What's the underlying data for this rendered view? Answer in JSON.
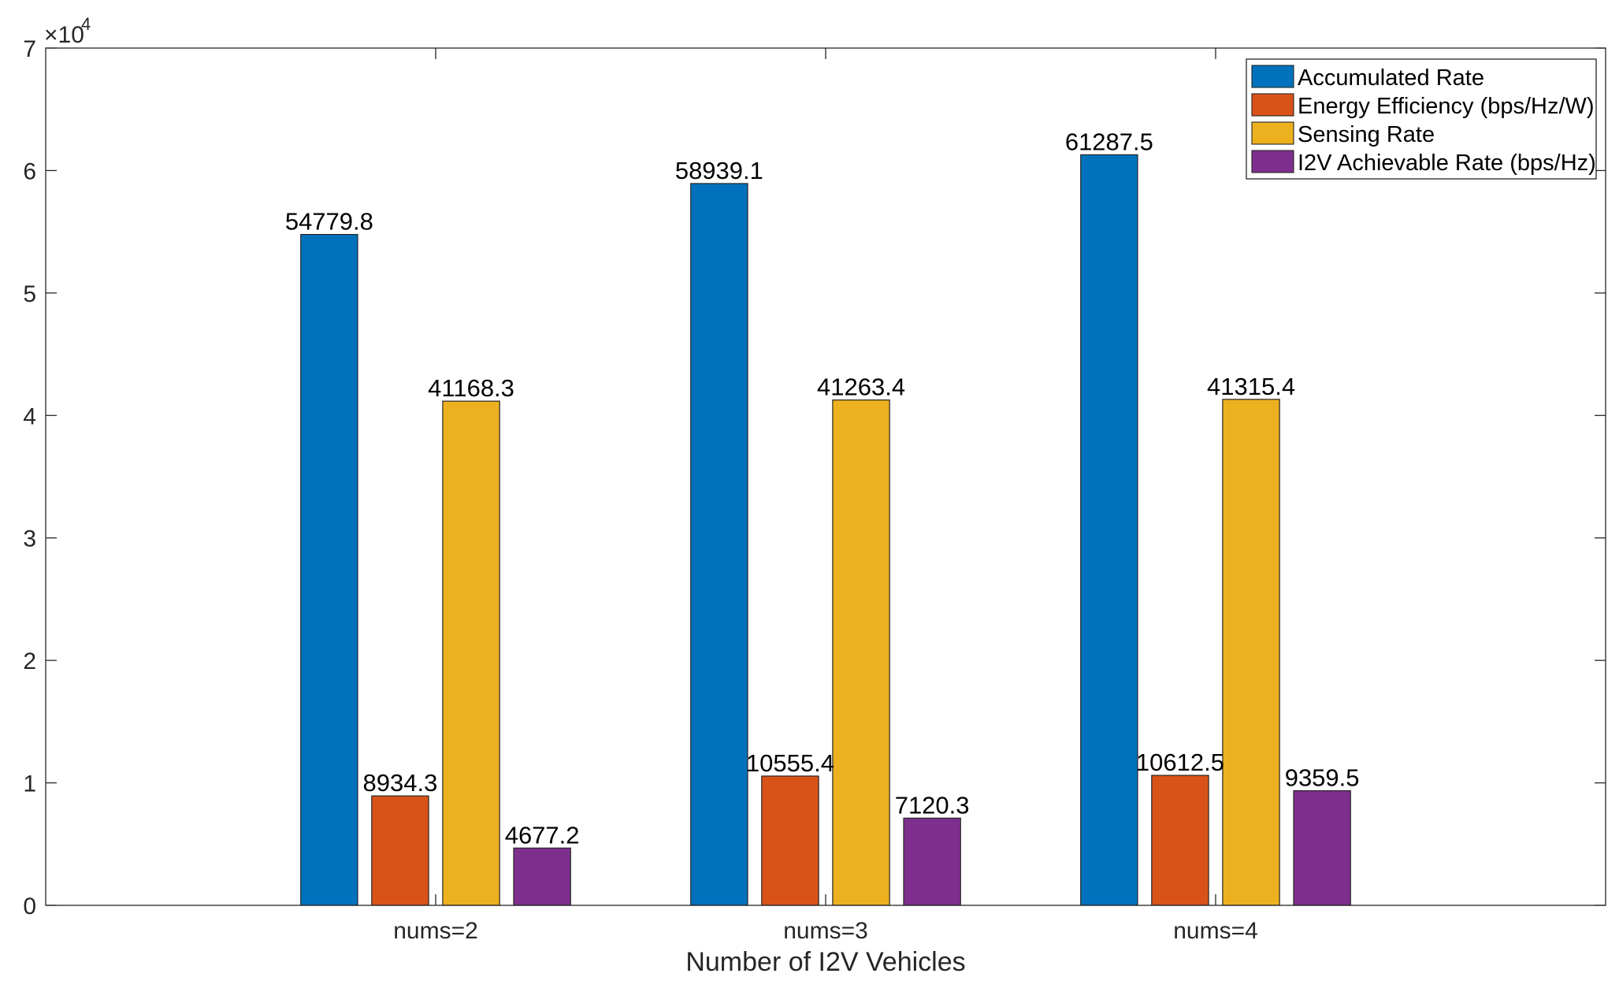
{
  "chart_data": {
    "type": "bar",
    "categories": [
      "nums=2",
      "nums=3",
      "nums=4"
    ],
    "series": [
      {
        "name": "Accumulated Rate",
        "values": [
          54779.8,
          58939.1,
          61287.5
        ],
        "color": "#0072BD"
      },
      {
        "name": "Energy Efficiency (bps/Hz/W)",
        "values": [
          8934.3,
          10555.4,
          10612.5
        ],
        "color": "#D95319"
      },
      {
        "name": "Sensing Rate",
        "values": [
          41168.3,
          41263.4,
          41315.4
        ],
        "color": "#EDB120"
      },
      {
        "name": "I2V Achievable Rate (bps/Hz)",
        "values": [
          4677.2,
          7120.3,
          9359.5
        ],
        "color": "#7E2F8E"
      }
    ],
    "data_labels": [
      [
        "54779.8",
        "8934.3",
        "41168.3",
        "4677.2"
      ],
      [
        "58939.1",
        "10555.4",
        "41263.4",
        "7120.3"
      ],
      [
        "61287.5",
        "10612.5",
        "41315.4",
        "9359.5"
      ]
    ],
    "title": "",
    "xlabel": "Number of I2V Vehicles",
    "ylabel": "",
    "ylim": [
      0,
      70000
    ],
    "y_ticks": [
      0,
      10000,
      20000,
      30000,
      40000,
      50000,
      60000,
      70000
    ],
    "y_tick_labels": [
      "0",
      "1",
      "2",
      "3",
      "4",
      "5",
      "6",
      "7"
    ],
    "y_exponent": {
      "base": "×10",
      "power": "4"
    },
    "grid": false,
    "legend_position": "top-right"
  }
}
